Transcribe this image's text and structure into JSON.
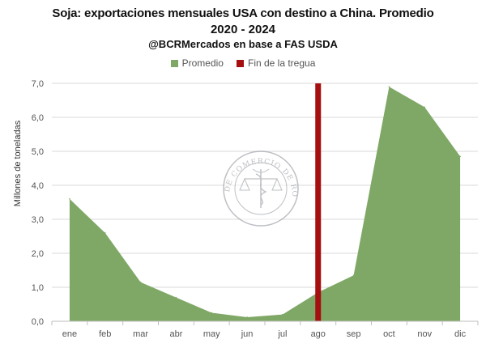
{
  "titles": {
    "line1": "Soja: exportaciones mensuales USA con destino a China. Promedio",
    "line2": "2020 - 2024",
    "line3": "@BCRMercados en base a FAS USDA"
  },
  "legend": [
    {
      "label": "Promedio",
      "color": "#7fa866"
    },
    {
      "label": "Fin de la tregua",
      "color": "#a50f0f"
    }
  ],
  "watermark": {
    "text": "BOLSA DE COMERCIO DE ROSARIO",
    "icon": "caduceus-scales-seal"
  },
  "chart_data": {
    "type": "area",
    "title": "Soja: exportaciones mensuales USA con destino a China. Promedio 2020 - 2024",
    "ylabel": "Millones de toneladas",
    "xlabel": "",
    "categories": [
      "ene",
      "feb",
      "mar",
      "abr",
      "may",
      "jun",
      "jul",
      "ago",
      "sep",
      "oct",
      "nov",
      "dic"
    ],
    "series": [
      {
        "name": "Promedio",
        "color": "#7fa866",
        "values": [
          3.6,
          2.6,
          1.15,
          0.7,
          0.25,
          0.12,
          0.2,
          0.85,
          1.35,
          6.9,
          6.3,
          4.85
        ]
      }
    ],
    "marker": {
      "name": "Fin de la tregua",
      "category": "ago",
      "color": "#a50f0f"
    },
    "ylim": [
      0,
      7
    ],
    "yticks": [
      "0,0",
      "1,0",
      "2,0",
      "3,0",
      "4,0",
      "5,0",
      "6,0",
      "7,0"
    ],
    "grid": true,
    "legend_position": "top"
  }
}
